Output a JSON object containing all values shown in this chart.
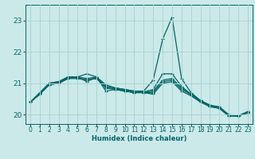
{
  "xlabel": "Humidex (Indice chaleur)",
  "ylabel": "",
  "background_color": "#cce9e9",
  "grid_color": "#aad4d4",
  "line_color": "#006666",
  "xlim": [
    -0.5,
    23.5
  ],
  "ylim": [
    19.7,
    23.5
  ],
  "yticks": [
    20,
    21,
    22,
    23
  ],
  "xticks": [
    0,
    1,
    2,
    3,
    4,
    5,
    6,
    7,
    8,
    9,
    10,
    11,
    12,
    13,
    14,
    15,
    16,
    17,
    18,
    19,
    20,
    21,
    22,
    23
  ],
  "series": [
    [
      20.4,
      20.65,
      20.95,
      21.0,
      21.15,
      21.15,
      21.1,
      21.15,
      20.85,
      20.8,
      20.75,
      20.7,
      20.7,
      20.65,
      21.0,
      21.05,
      20.75,
      20.6,
      20.4,
      20.25,
      20.2,
      19.95,
      19.95,
      20.05
    ],
    [
      20.4,
      20.7,
      21.0,
      21.05,
      21.2,
      21.2,
      21.3,
      21.2,
      20.95,
      20.85,
      20.8,
      20.75,
      20.75,
      21.1,
      22.4,
      23.1,
      21.15,
      20.7,
      20.45,
      20.3,
      20.25,
      20.0,
      19.95,
      20.1
    ],
    [
      20.4,
      20.65,
      20.95,
      21.0,
      21.15,
      21.2,
      21.05,
      21.2,
      20.75,
      20.8,
      20.75,
      20.7,
      20.7,
      20.7,
      21.05,
      21.1,
      20.8,
      20.65,
      20.45,
      20.3,
      20.2,
      19.97,
      19.97,
      20.07
    ],
    [
      20.4,
      20.65,
      21.0,
      21.05,
      21.2,
      21.2,
      21.15,
      21.2,
      20.9,
      20.85,
      20.8,
      20.75,
      20.72,
      20.8,
      21.3,
      21.3,
      20.9,
      20.65,
      20.42,
      20.28,
      20.22,
      19.98,
      19.96,
      20.08
    ],
    [
      20.4,
      20.65,
      20.97,
      21.02,
      21.17,
      21.18,
      21.1,
      21.18,
      20.86,
      20.82,
      20.77,
      20.72,
      20.71,
      20.75,
      21.1,
      21.15,
      20.85,
      20.63,
      20.43,
      20.28,
      20.21,
      19.97,
      19.96,
      20.08
    ]
  ],
  "xlabel_fontsize": 6.0,
  "tick_fontsize": 5.5,
  "ytick_fontsize": 6.5
}
